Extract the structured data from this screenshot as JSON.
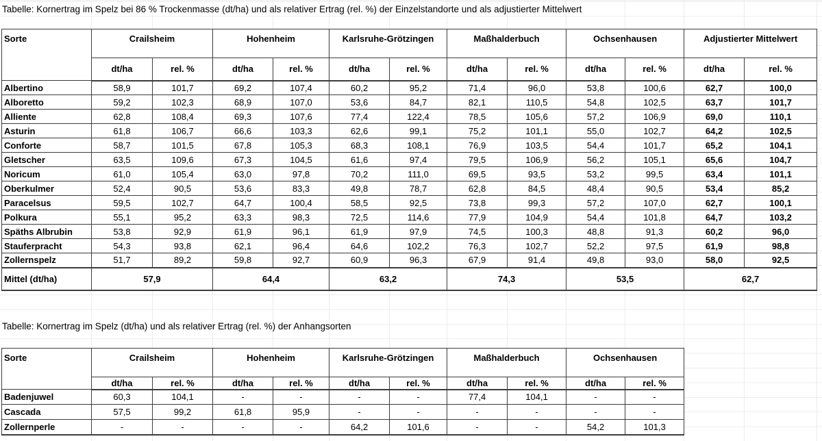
{
  "colors": {
    "table_border": "#3c3c3c",
    "background_gridline": "#ececec",
    "text": "#000000",
    "paper": "#ffffff"
  },
  "table1": {
    "title": "Tabelle: Kornertrag im Spelz bei 86 % Trockenmasse (dt/ha) und als relativer Ertrag (rel. %) der Einzelstandorte und als adjustierter Mittelwert",
    "sorte_label": "Sorte",
    "locations": [
      "Crailsheim",
      "Hohenheim",
      "Karlsruhe-Grötzingen",
      "Maßhalderbuch",
      "Ochsenhausen",
      "Adjustierter Mittelwert"
    ],
    "subheaders": [
      "dt/ha",
      "rel. %"
    ],
    "rows": [
      {
        "name": "Albertino",
        "values": [
          "58,9",
          "101,7",
          "69,2",
          "107,4",
          "60,2",
          "95,2",
          "71,4",
          "96,0",
          "53,8",
          "100,6",
          "62,7",
          "100,0"
        ]
      },
      {
        "name": "Alboretto",
        "values": [
          "59,2",
          "102,3",
          "68,9",
          "107,0",
          "53,6",
          "84,7",
          "82,1",
          "110,5",
          "54,8",
          "102,5",
          "63,7",
          "101,7"
        ]
      },
      {
        "name": "Alliente",
        "values": [
          "62,8",
          "108,4",
          "69,3",
          "107,6",
          "77,4",
          "122,4",
          "78,5",
          "105,6",
          "57,2",
          "106,9",
          "69,0",
          "110,1"
        ]
      },
      {
        "name": "Asturin",
        "values": [
          "61,8",
          "106,7",
          "66,6",
          "103,3",
          "62,6",
          "99,1",
          "75,2",
          "101,1",
          "55,0",
          "102,7",
          "64,2",
          "102,5"
        ]
      },
      {
        "name": "Conforte",
        "values": [
          "58,7",
          "101,5",
          "67,8",
          "105,3",
          "68,3",
          "108,1",
          "76,9",
          "103,5",
          "54,4",
          "101,7",
          "65,2",
          "104,1"
        ]
      },
      {
        "name": "Gletscher",
        "values": [
          "63,5",
          "109,6",
          "67,3",
          "104,5",
          "61,6",
          "97,4",
          "79,5",
          "106,9",
          "56,2",
          "105,1",
          "65,6",
          "104,7"
        ]
      },
      {
        "name": "Noricum",
        "values": [
          "61,0",
          "105,4",
          "63,0",
          "97,8",
          "70,2",
          "111,0",
          "69,5",
          "93,5",
          "53,2",
          "99,5",
          "63,4",
          "101,1"
        ]
      },
      {
        "name": "Oberkulmer",
        "values": [
          "52,4",
          "90,5",
          "53,6",
          "83,3",
          "49,8",
          "78,7",
          "62,8",
          "84,5",
          "48,4",
          "90,5",
          "53,4",
          "85,2"
        ]
      },
      {
        "name": "Paracelsus",
        "values": [
          "59,5",
          "102,7",
          "64,7",
          "100,4",
          "58,5",
          "92,5",
          "73,8",
          "99,3",
          "57,2",
          "107,0",
          "62,7",
          "100,1"
        ]
      },
      {
        "name": "Polkura",
        "values": [
          "55,1",
          "95,2",
          "63,3",
          "98,3",
          "72,5",
          "114,6",
          "77,9",
          "104,9",
          "54,4",
          "101,8",
          "64,7",
          "103,2"
        ]
      },
      {
        "name": "Späths Albrubin",
        "values": [
          "53,8",
          "92,9",
          "61,9",
          "96,1",
          "61,9",
          "97,9",
          "74,5",
          "100,3",
          "48,8",
          "91,3",
          "60,2",
          "96,0"
        ]
      },
      {
        "name": "Stauferpracht",
        "values": [
          "54,3",
          "93,8",
          "62,1",
          "96,4",
          "64,6",
          "102,2",
          "76,3",
          "102,7",
          "52,2",
          "97,5",
          "61,9",
          "98,8"
        ]
      },
      {
        "name": "Zollernspelz",
        "values": [
          "51,7",
          "89,2",
          "59,8",
          "92,7",
          "60,9",
          "96,3",
          "67,9",
          "91,4",
          "49,8",
          "93,0",
          "58,0",
          "92,5"
        ]
      }
    ],
    "mittel": {
      "label": "Mittel (dt/ha)",
      "values": [
        "57,9",
        "64,4",
        "63,2",
        "74,3",
        "53,5",
        "62,7"
      ]
    }
  },
  "table2": {
    "title": "Tabelle: Kornertrag im Spelz (dt/ha) und als relativer Ertrag (rel. %) der Anhangsorten",
    "sorte_label": "Sorte",
    "locations": [
      "Crailsheim",
      "Hohenheim",
      "Karlsruhe-Grötzingen",
      "Maßhalderbuch",
      "Ochsenhausen"
    ],
    "subheaders": [
      "dt/ha",
      "rel. %"
    ],
    "rows": [
      {
        "name": "Badenjuwel",
        "values": [
          "60,3",
          "104,1",
          "-",
          "-",
          "-",
          "-",
          "77,4",
          "104,1",
          "-",
          "-"
        ]
      },
      {
        "name": "Cascada",
        "values": [
          "57,5",
          "99,2",
          "61,8",
          "95,9",
          "-",
          "-",
          "-",
          "-",
          "-",
          "-"
        ]
      },
      {
        "name": "Zollernperle",
        "values": [
          "-",
          "-",
          "-",
          "-",
          "64,2",
          "101,6",
          "-",
          "-",
          "54,2",
          "101,3"
        ]
      }
    ]
  }
}
